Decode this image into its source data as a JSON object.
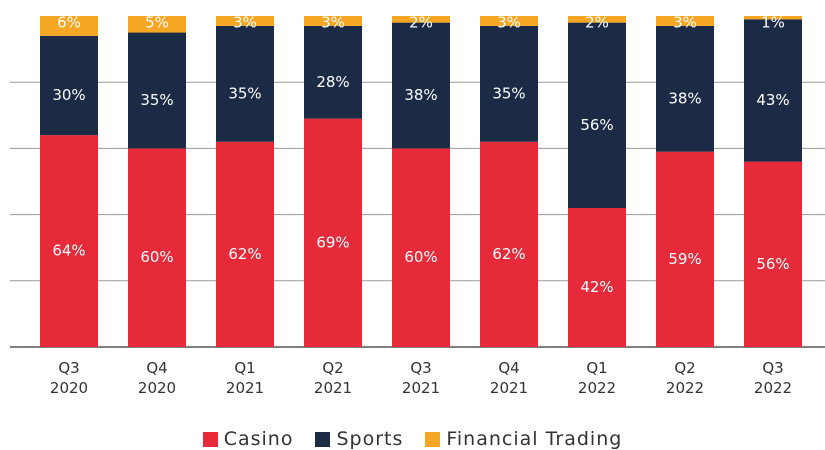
{
  "chart_data": {
    "type": "bar",
    "stacked": true,
    "categories": [
      "Q3 2020",
      "Q4 2020",
      "Q1 2021",
      "Q2 2021",
      "Q3 2021",
      "Q4 2021",
      "Q1 2022",
      "Q2 2022",
      "Q3 2022"
    ],
    "series": [
      {
        "name": "Casino",
        "color": "#e62a3a",
        "values": [
          64,
          60,
          62,
          69,
          60,
          62,
          42,
          59,
          56
        ],
        "value_labels": [
          "64%",
          "60%",
          "62%",
          "69%",
          "60%",
          "62%",
          "42%",
          "59%",
          "56%"
        ]
      },
      {
        "name": "Sports",
        "color": "#1b2a45",
        "values": [
          30,
          35,
          35,
          28,
          38,
          35,
          56,
          38,
          43
        ],
        "value_labels": [
          "30%",
          "35%",
          "35%",
          "28%",
          "38%",
          "35%",
          "56%",
          "38%",
          "43%"
        ]
      },
      {
        "name": "Financial Trading",
        "color": "#f5a623",
        "values": [
          6,
          5,
          3,
          3,
          2,
          3,
          2,
          3,
          1
        ],
        "value_labels": [
          "6%",
          "5%",
          "3%",
          "3%",
          "2%",
          "3%",
          "2%",
          "3%",
          "1%"
        ]
      }
    ],
    "ylim": [
      0,
      100
    ],
    "yticks": [
      0,
      20,
      40,
      60,
      80
    ],
    "grid": true
  }
}
